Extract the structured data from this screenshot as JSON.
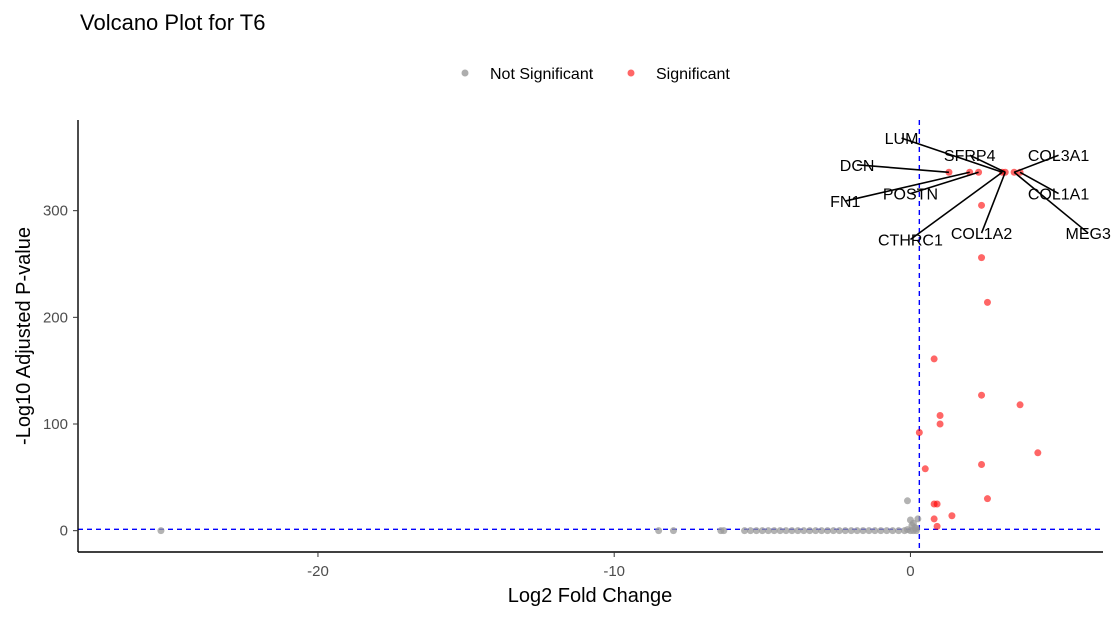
{
  "chart_data": {
    "type": "scatter",
    "title": "Volcano Plot for T6",
    "xlabel": "Log2 Fold Change",
    "ylabel": "-Log10 Adjusted P-value",
    "xlim": [
      -28.1,
      6.5
    ],
    "ylim": [
      -20,
      385
    ],
    "x_ticks": [
      -20,
      -10,
      0
    ],
    "x_tick_labels": [
      "-20",
      "-10",
      "0"
    ],
    "y_ticks": [
      0,
      100,
      200,
      300
    ],
    "y_tick_labels": [
      "0",
      "100",
      "200",
      "300"
    ],
    "grid": false,
    "legend_position": "top",
    "reference_lines": {
      "vertical_x": 0.3,
      "horizontal_y": 1.3,
      "color": "#0000ff",
      "style": "dashed"
    },
    "series": [
      {
        "name": "Not Significant",
        "color": "#999999",
        "points": [
          {
            "x": -25.3,
            "y": 0
          },
          {
            "x": -8.5,
            "y": 0
          },
          {
            "x": -8.0,
            "y": 0
          },
          {
            "x": -6.4,
            "y": 0
          },
          {
            "x": -6.3,
            "y": 0
          },
          {
            "x": -5.6,
            "y": 0
          },
          {
            "x": -5.4,
            "y": 0
          },
          {
            "x": -5.2,
            "y": 0
          },
          {
            "x": -5.0,
            "y": 0
          },
          {
            "x": -4.8,
            "y": 0
          },
          {
            "x": -4.6,
            "y": 0
          },
          {
            "x": -4.4,
            "y": 0
          },
          {
            "x": -4.2,
            "y": 0
          },
          {
            "x": -4.0,
            "y": 0
          },
          {
            "x": -3.8,
            "y": 0
          },
          {
            "x": -3.6,
            "y": 0
          },
          {
            "x": -3.4,
            "y": 0
          },
          {
            "x": -3.2,
            "y": 0
          },
          {
            "x": -3.0,
            "y": 0
          },
          {
            "x": -2.8,
            "y": 0
          },
          {
            "x": -2.6,
            "y": 0
          },
          {
            "x": -2.4,
            "y": 0
          },
          {
            "x": -2.2,
            "y": 0
          },
          {
            "x": -2.0,
            "y": 0
          },
          {
            "x": -1.8,
            "y": 0
          },
          {
            "x": -1.6,
            "y": 0
          },
          {
            "x": -1.4,
            "y": 0
          },
          {
            "x": -1.2,
            "y": 0
          },
          {
            "x": -1.0,
            "y": 0
          },
          {
            "x": -0.8,
            "y": 0
          },
          {
            "x": -0.6,
            "y": 0
          },
          {
            "x": -0.4,
            "y": 0
          },
          {
            "x": -0.2,
            "y": 0
          },
          {
            "x": -0.1,
            "y": 1
          },
          {
            "x": 0.0,
            "y": 0
          },
          {
            "x": 0.1,
            "y": 0
          },
          {
            "x": 0.2,
            "y": 0
          },
          {
            "x": -0.1,
            "y": 28
          },
          {
            "x": 0.0,
            "y": 10
          },
          {
            "x": 0.05,
            "y": 5
          },
          {
            "x": 0.15,
            "y": 3
          },
          {
            "x": 0.25,
            "y": 11
          },
          {
            "x": 0.1,
            "y": 7
          },
          {
            "x": 0.2,
            "y": 2
          }
        ]
      },
      {
        "name": "Significant",
        "color": "#ff0000",
        "points": [
          {
            "x": 1.3,
            "y": 336
          },
          {
            "x": 2.0,
            "y": 336
          },
          {
            "x": 2.3,
            "y": 336
          },
          {
            "x": 3.1,
            "y": 336
          },
          {
            "x": 3.2,
            "y": 336
          },
          {
            "x": 3.5,
            "y": 336
          },
          {
            "x": 3.7,
            "y": 336
          },
          {
            "x": 2.4,
            "y": 305
          },
          {
            "x": 2.4,
            "y": 256
          },
          {
            "x": 2.6,
            "y": 214
          },
          {
            "x": 0.8,
            "y": 161
          },
          {
            "x": 2.4,
            "y": 127
          },
          {
            "x": 3.7,
            "y": 118
          },
          {
            "x": 1.0,
            "y": 108
          },
          {
            "x": 1.0,
            "y": 100
          },
          {
            "x": 0.3,
            "y": 92
          },
          {
            "x": 4.3,
            "y": 73
          },
          {
            "x": 2.4,
            "y": 62
          },
          {
            "x": 0.5,
            "y": 58
          },
          {
            "x": 2.6,
            "y": 30
          },
          {
            "x": 0.8,
            "y": 25
          },
          {
            "x": 0.9,
            "y": 25
          },
          {
            "x": 0.8,
            "y": 11
          },
          {
            "x": 1.4,
            "y": 14
          },
          {
            "x": 0.9,
            "y": 4
          }
        ]
      }
    ],
    "annotations": [
      {
        "text": "LUM",
        "point": {
          "x": 3.1,
          "y": 336
        },
        "label_at": {
          "x": -0.3,
          "y": 368
        }
      },
      {
        "text": "SFRP4",
        "point": {
          "x": 3.2,
          "y": 336
        },
        "label_at": {
          "x": 2.0,
          "y": 352
        }
      },
      {
        "text": "COL3A1",
        "point": {
          "x": 3.5,
          "y": 336
        },
        "label_at": {
          "x": 5.0,
          "y": 352
        }
      },
      {
        "text": "DCN",
        "point": {
          "x": 1.3,
          "y": 336
        },
        "label_at": {
          "x": -1.8,
          "y": 343
        }
      },
      {
        "text": "FN1",
        "point": {
          "x": 2.0,
          "y": 336
        },
        "label_at": {
          "x": -2.2,
          "y": 309
        }
      },
      {
        "text": "POSTN",
        "point": {
          "x": 2.3,
          "y": 336
        },
        "label_at": {
          "x": 0.0,
          "y": 316
        }
      },
      {
        "text": "COL1A1",
        "point": {
          "x": 3.7,
          "y": 336
        },
        "label_at": {
          "x": 5.0,
          "y": 316
        }
      },
      {
        "text": "COL1A2",
        "point": {
          "x": 3.2,
          "y": 336
        },
        "label_at": {
          "x": 2.4,
          "y": 279
        }
      },
      {
        "text": "MEG3",
        "point": {
          "x": 3.5,
          "y": 336
        },
        "label_at": {
          "x": 6.0,
          "y": 279
        }
      },
      {
        "text": "CTHRC1",
        "point": {
          "x": 3.1,
          "y": 336
        },
        "label_at": {
          "x": 0.0,
          "y": 273
        }
      }
    ]
  }
}
